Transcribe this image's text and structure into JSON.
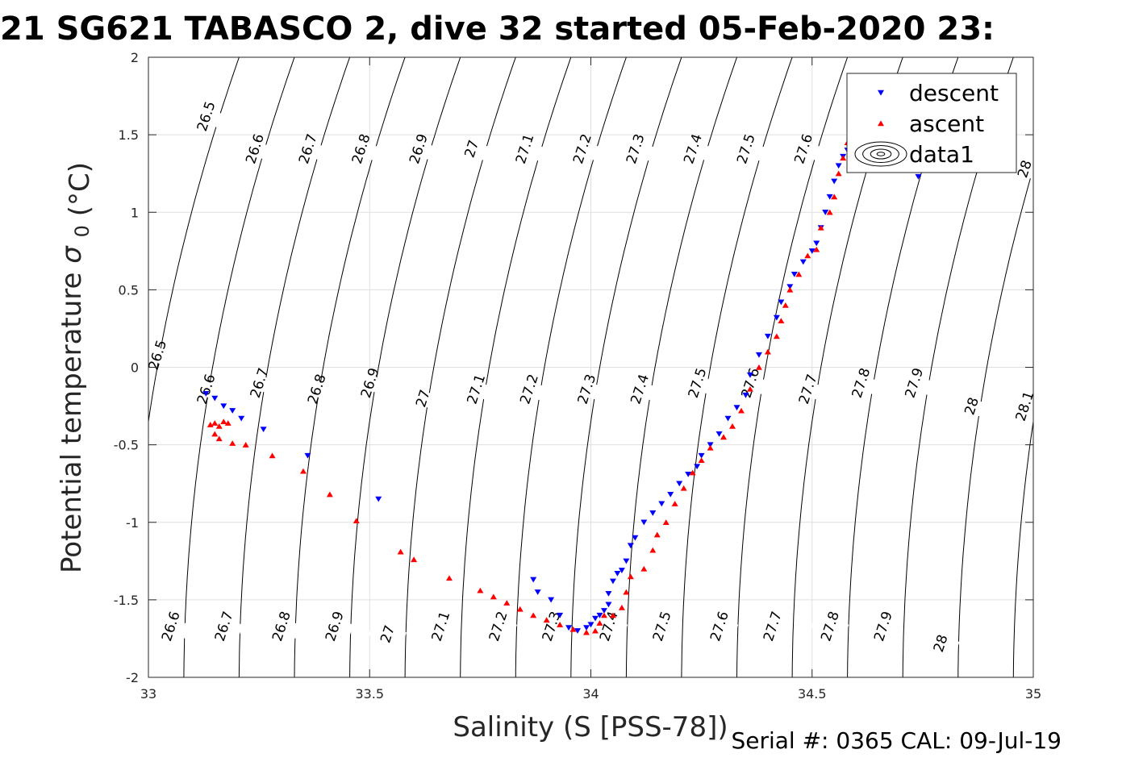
{
  "chart_data": {
    "type": "scatter",
    "title": "21 SG621 TABASCO 2, dive 32 started 05-Feb-2020 23:",
    "xlabel": "Salinity (S [PSS-78])",
    "ylabel": "Potential temperature",
    "ylabel_symbol": "σ",
    "ylabel_sub": "0",
    "ylabel_unit": "(°C)",
    "footer": "Serial #: 0365  CAL: 09-Jul-19",
    "xlim": [
      33,
      35
    ],
    "ylim": [
      -2,
      2
    ],
    "grid": true,
    "legend_position": "top-right",
    "x_ticks": [
      "33",
      "33.5",
      "34",
      "34.5",
      "35"
    ],
    "y_ticks": [
      "-2",
      "-1.5",
      "-1",
      "-0.5",
      "0",
      "0.5",
      "1",
      "1.5",
      "2"
    ],
    "legend": [
      {
        "label": "descent",
        "marker": "triangle-down",
        "color": "#0000ff"
      },
      {
        "label": "ascent",
        "marker": "triangle-up",
        "color": "#ff0000"
      },
      {
        "label": "data1",
        "marker": "contour",
        "color": "#000000"
      }
    ],
    "density_contours": {
      "levels": [
        "26.5",
        "26.6",
        "26.7",
        "26.8",
        "26.9",
        "27",
        "27.1",
        "27.2",
        "27.3",
        "27.4",
        "27.5",
        "27.6",
        "27.7",
        "27.8",
        "27.9",
        "28",
        "28.1"
      ],
      "label_positions": [
        {
          "text": "26.5",
          "s": 33.13,
          "t": 1.62
        },
        {
          "text": "26.6",
          "s": 33.24,
          "t": 1.41
        },
        {
          "text": "26.7",
          "s": 33.36,
          "t": 1.41
        },
        {
          "text": "26.8",
          "s": 33.48,
          "t": 1.41
        },
        {
          "text": "26.9",
          "s": 33.61,
          "t": 1.41
        },
        {
          "text": "27",
          "s": 33.73,
          "t": 1.41
        },
        {
          "text": "27.1",
          "s": 33.85,
          "t": 1.41
        },
        {
          "text": "27.2",
          "s": 33.98,
          "t": 1.41
        },
        {
          "text": "27.3",
          "s": 34.1,
          "t": 1.41
        },
        {
          "text": "27.4",
          "s": 34.23,
          "t": 1.41
        },
        {
          "text": "27.5",
          "s": 34.35,
          "t": 1.41
        },
        {
          "text": "27.6",
          "s": 34.48,
          "t": 1.41
        },
        {
          "text": "28",
          "s": 34.98,
          "t": 1.28
        },
        {
          "text": "26.5",
          "s": 33.02,
          "t": 0.08
        },
        {
          "text": "26.6",
          "s": 33.13,
          "t": -0.14
        },
        {
          "text": "26.7",
          "s": 33.25,
          "t": -0.1
        },
        {
          "text": "26.8",
          "s": 33.38,
          "t": -0.14
        },
        {
          "text": "26.9",
          "s": 33.5,
          "t": -0.1
        },
        {
          "text": "27",
          "s": 33.62,
          "t": -0.2
        },
        {
          "text": "27.1",
          "s": 33.74,
          "t": -0.14
        },
        {
          "text": "27.2",
          "s": 33.86,
          "t": -0.14
        },
        {
          "text": "27.3",
          "s": 33.99,
          "t": -0.14
        },
        {
          "text": "27.4",
          "s": 34.11,
          "t": -0.14
        },
        {
          "text": "27.5",
          "s": 34.24,
          "t": -0.1
        },
        {
          "text": "27.6",
          "s": 34.36,
          "t": -0.1
        },
        {
          "text": "27.7",
          "s": 34.49,
          "t": -0.14
        },
        {
          "text": "27.8",
          "s": 34.61,
          "t": -0.1
        },
        {
          "text": "27.9",
          "s": 34.73,
          "t": -0.1
        },
        {
          "text": "28",
          "s": 34.86,
          "t": -0.25
        },
        {
          "text": "28.1",
          "s": 34.98,
          "t": -0.25
        },
        {
          "text": "26.6",
          "s": 33.05,
          "t": -1.67
        },
        {
          "text": "26.7",
          "s": 33.17,
          "t": -1.67
        },
        {
          "text": "26.8",
          "s": 33.3,
          "t": -1.67
        },
        {
          "text": "26.9",
          "s": 33.42,
          "t": -1.67
        },
        {
          "text": "27",
          "s": 33.54,
          "t": -1.72
        },
        {
          "text": "27.1",
          "s": 33.66,
          "t": -1.67
        },
        {
          "text": "27.2",
          "s": 33.79,
          "t": -1.67
        },
        {
          "text": "27.3",
          "s": 33.91,
          "t": -1.67
        },
        {
          "text": "27.4",
          "s": 34.04,
          "t": -1.67
        },
        {
          "text": "27.5",
          "s": 34.16,
          "t": -1.67
        },
        {
          "text": "27.6",
          "s": 34.29,
          "t": -1.67
        },
        {
          "text": "27.7",
          "s": 34.41,
          "t": -1.67
        },
        {
          "text": "27.8",
          "s": 34.54,
          "t": -1.67
        },
        {
          "text": "27.9",
          "s": 34.66,
          "t": -1.67
        },
        {
          "text": "28",
          "s": 34.79,
          "t": -1.78
        }
      ]
    },
    "series": [
      {
        "name": "descent",
        "marker": "triangle-down",
        "color": "#0000ff",
        "points": [
          [
            33.13,
            -0.17
          ],
          [
            33.15,
            -0.2
          ],
          [
            33.17,
            -0.25
          ],
          [
            33.19,
            -0.28
          ],
          [
            33.21,
            -0.33
          ],
          [
            33.26,
            -0.4
          ],
          [
            33.36,
            -0.57
          ],
          [
            33.52,
            -0.85
          ],
          [
            33.87,
            -1.37
          ],
          [
            33.88,
            -1.45
          ],
          [
            33.91,
            -1.5
          ],
          [
            33.93,
            -1.6
          ],
          [
            33.95,
            -1.68
          ],
          [
            33.97,
            -1.7
          ],
          [
            33.99,
            -1.68
          ],
          [
            34.0,
            -1.66
          ],
          [
            34.01,
            -1.62
          ],
          [
            34.02,
            -1.6
          ],
          [
            34.03,
            -1.57
          ],
          [
            34.04,
            -1.53
          ],
          [
            34.04,
            -1.46
          ],
          [
            34.05,
            -1.38
          ],
          [
            34.06,
            -1.33
          ],
          [
            34.07,
            -1.31
          ],
          [
            34.08,
            -1.25
          ],
          [
            34.09,
            -1.15
          ],
          [
            34.1,
            -1.1
          ],
          [
            34.12,
            -1.0
          ],
          [
            34.14,
            -0.94
          ],
          [
            34.16,
            -0.88
          ],
          [
            34.18,
            -0.82
          ],
          [
            34.2,
            -0.75
          ],
          [
            34.22,
            -0.69
          ],
          [
            34.24,
            -0.64
          ],
          [
            34.25,
            -0.57
          ],
          [
            34.27,
            -0.5
          ],
          [
            34.29,
            -0.43
          ],
          [
            34.31,
            -0.33
          ],
          [
            34.33,
            -0.26
          ],
          [
            34.35,
            -0.18
          ],
          [
            34.36,
            -0.05
          ],
          [
            34.38,
            0.08
          ],
          [
            34.4,
            0.2
          ],
          [
            34.42,
            0.32
          ],
          [
            34.43,
            0.42
          ],
          [
            34.45,
            0.52
          ],
          [
            34.46,
            0.6
          ],
          [
            34.48,
            0.68
          ],
          [
            34.5,
            0.75
          ],
          [
            34.51,
            0.8
          ],
          [
            34.52,
            0.9
          ],
          [
            34.53,
            1.0
          ],
          [
            34.54,
            1.1
          ],
          [
            34.55,
            1.2
          ],
          [
            34.56,
            1.3
          ],
          [
            34.57,
            1.36
          ],
          [
            34.58,
            1.4
          ],
          [
            34.74,
            1.23
          ]
        ]
      },
      {
        "name": "ascent",
        "marker": "triangle-up",
        "color": "#ff0000",
        "points": [
          [
            33.14,
            -0.37
          ],
          [
            33.15,
            -0.36
          ],
          [
            33.16,
            -0.38
          ],
          [
            33.17,
            -0.35
          ],
          [
            33.18,
            -0.36
          ],
          [
            33.15,
            -0.43
          ],
          [
            33.16,
            -0.46
          ],
          [
            33.19,
            -0.49
          ],
          [
            33.22,
            -0.5
          ],
          [
            33.28,
            -0.57
          ],
          [
            33.35,
            -0.67
          ],
          [
            33.41,
            -0.82
          ],
          [
            33.47,
            -0.99
          ],
          [
            33.57,
            -1.19
          ],
          [
            33.6,
            -1.24
          ],
          [
            33.68,
            -1.36
          ],
          [
            33.75,
            -1.44
          ],
          [
            33.78,
            -1.48
          ],
          [
            33.81,
            -1.52
          ],
          [
            33.84,
            -1.56
          ],
          [
            33.87,
            -1.6
          ],
          [
            33.9,
            -1.63
          ],
          [
            33.93,
            -1.66
          ],
          [
            33.96,
            -1.69
          ],
          [
            33.99,
            -1.71
          ],
          [
            34.01,
            -1.7
          ],
          [
            34.02,
            -1.65
          ],
          [
            34.03,
            -1.6
          ],
          [
            34.05,
            -1.6
          ],
          [
            34.07,
            -1.55
          ],
          [
            34.08,
            -1.45
          ],
          [
            34.09,
            -1.35
          ],
          [
            34.12,
            -1.3
          ],
          [
            34.14,
            -1.18
          ],
          [
            34.15,
            -1.08
          ],
          [
            34.17,
            -1.0
          ],
          [
            34.19,
            -0.88
          ],
          [
            34.21,
            -0.78
          ],
          [
            34.23,
            -0.68
          ],
          [
            34.25,
            -0.6
          ],
          [
            34.27,
            -0.52
          ],
          [
            34.3,
            -0.45
          ],
          [
            34.32,
            -0.38
          ],
          [
            34.34,
            -0.28
          ],
          [
            34.36,
            -0.14
          ],
          [
            34.38,
            0.0
          ],
          [
            34.4,
            0.1
          ],
          [
            34.42,
            0.2
          ],
          [
            34.43,
            0.3
          ],
          [
            34.44,
            0.4
          ],
          [
            34.45,
            0.5
          ],
          [
            34.47,
            0.6
          ],
          [
            34.49,
            0.72
          ],
          [
            34.51,
            0.76
          ],
          [
            34.52,
            0.9
          ],
          [
            34.54,
            1.0
          ],
          [
            34.55,
            1.1
          ],
          [
            34.56,
            1.25
          ],
          [
            34.57,
            1.35
          ],
          [
            34.58,
            1.45
          ],
          [
            34.59,
            1.32
          ],
          [
            34.66,
            1.88
          ],
          [
            34.69,
            1.88
          ],
          [
            34.73,
            1.3
          ],
          [
            34.76,
            1.27
          ]
        ]
      }
    ]
  }
}
